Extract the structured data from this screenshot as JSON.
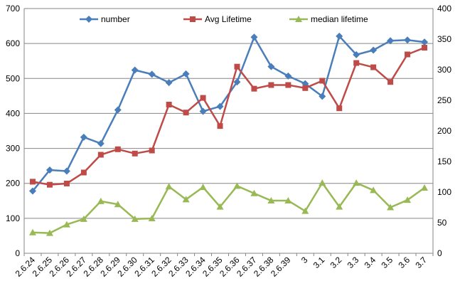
{
  "chart_data": {
    "type": "line",
    "title": "",
    "xlabel": "",
    "ylabel": "",
    "categories": [
      "2.6.24",
      "2.6.25",
      "2.6.26",
      "2.6.27",
      "2.6.28",
      "2.6.29",
      "2.6.30",
      "2.6.31",
      "2.6.32",
      "2.6.33",
      "2.6.34",
      "2.6.35",
      "2.6.36",
      "2.6.37",
      "2.6.38",
      "2.6.39",
      "3",
      "3.1",
      "3.2",
      "3.3",
      "3.4",
      "3.5",
      "3.6",
      "3.7"
    ],
    "ylim": [
      0,
      700
    ],
    "y_ticks": [
      "0",
      "100",
      "200",
      "300",
      "400",
      "500",
      "600",
      "700"
    ],
    "y2lim": [
      0,
      400
    ],
    "y2_ticks": [
      "0",
      "50",
      "100",
      "150",
      "200",
      "250",
      "300",
      "350",
      "400"
    ],
    "grid": true,
    "legend_position": "top",
    "series": [
      {
        "name": "number",
        "axis": "left",
        "color": "#4A7EBB",
        "marker": "diamond",
        "values": [
          178,
          238,
          235,
          332,
          314,
          410,
          524,
          512,
          488,
          513,
          406,
          420,
          490,
          618,
          534,
          507,
          485,
          449,
          621,
          568,
          581,
          608,
          610,
          604
        ]
      },
      {
        "name": "Avg Lifetime",
        "axis": "right",
        "color": "#BE4B48",
        "marker": "square",
        "values": [
          117,
          112,
          114,
          132,
          161,
          170,
          163,
          168,
          243,
          230,
          254,
          208,
          305,
          269,
          275,
          275,
          270,
          282,
          237,
          311,
          304,
          280,
          325,
          336
        ]
      },
      {
        "name": "median lifetime",
        "axis": "right",
        "color": "#98B954",
        "marker": "triangle",
        "values": [
          34,
          33,
          47,
          56,
          85,
          80,
          56,
          57,
          109,
          88,
          108,
          76,
          110,
          98,
          86,
          86,
          69,
          115,
          76,
          115,
          103,
          75,
          87,
          107
        ]
      }
    ]
  }
}
